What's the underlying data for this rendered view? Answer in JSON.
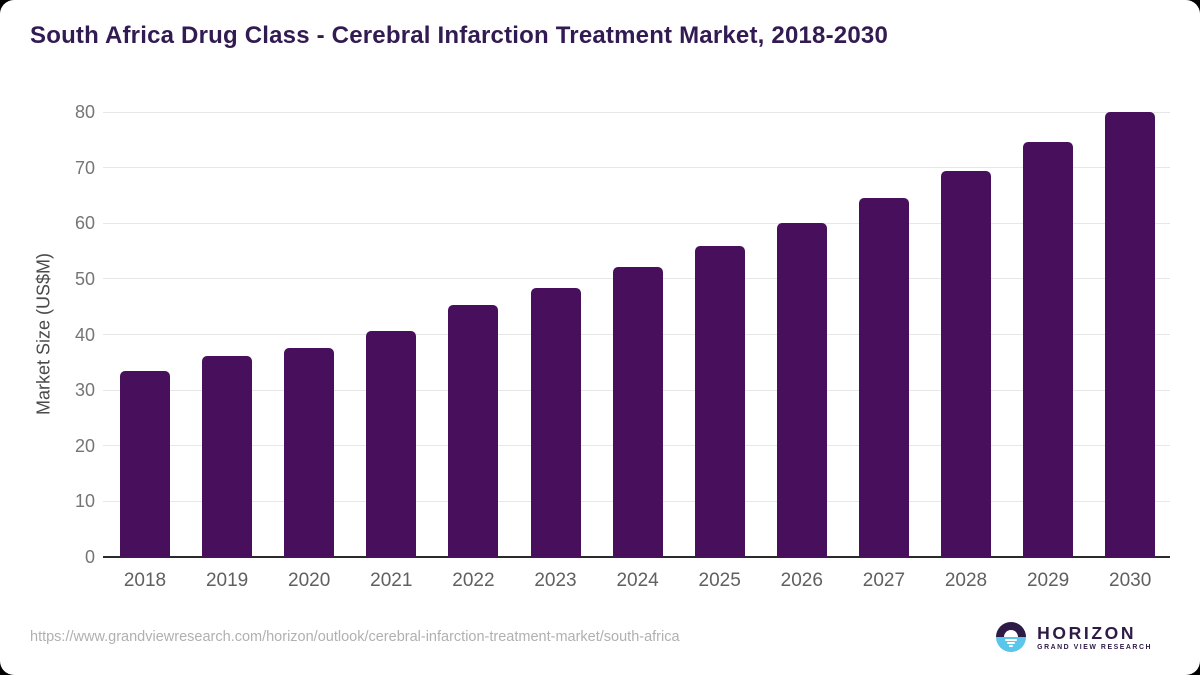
{
  "header": {
    "title": "South Africa Drug Class - Cerebral Infarction Treatment Market, 2018-2030"
  },
  "chart_data": {
    "type": "bar",
    "title": "South Africa Drug Class - Cerebral Infarction Treatment Market, 2018-2030",
    "categories": [
      "2018",
      "2019",
      "2020",
      "2021",
      "2022",
      "2023",
      "2024",
      "2025",
      "2026",
      "2027",
      "2028",
      "2029",
      "2030"
    ],
    "values": [
      33.5,
      36.2,
      37.5,
      40.7,
      45.3,
      48.4,
      52.2,
      56.0,
      60.1,
      64.5,
      69.4,
      74.6,
      80.0
    ],
    "xlabel": "",
    "ylabel": "Market Size (US$M)",
    "ylim": [
      0,
      80
    ],
    "yticks": [
      0,
      10,
      20,
      30,
      40,
      50,
      60,
      70,
      80
    ],
    "grid": "horizontal",
    "legend": "none"
  },
  "colors": {
    "bar": "#48105C",
    "title": "#321B52",
    "gridline": "#e7e7e7",
    "axis_line": "#2b2b2b",
    "logo_purple": "#2E1A47",
    "logo_blue": "#59C6EA"
  },
  "footer": {
    "source_url": "https://www.grandviewresearch.com/horizon/outlook/cerebral-infarction-treatment-market/south-africa",
    "logo": {
      "brand": "HORIZON",
      "sub_brand": "GRAND VIEW RESEARCH"
    }
  }
}
